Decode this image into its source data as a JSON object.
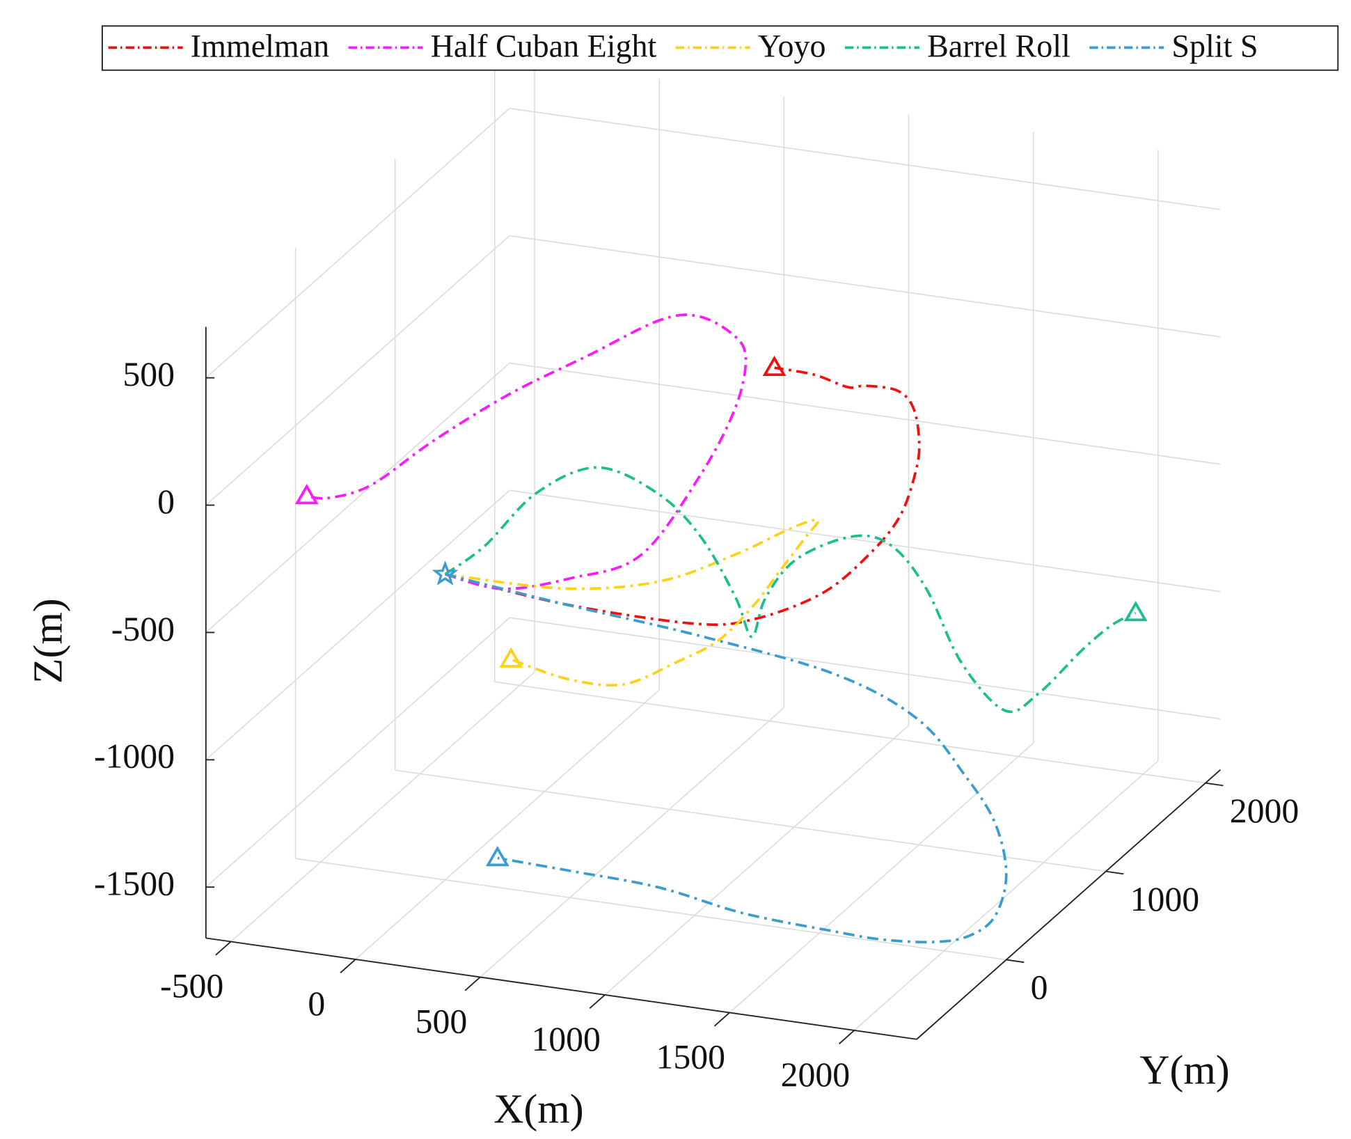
{
  "chart_data": {
    "type": "line3d",
    "xlabel": "X(m)",
    "ylabel": "Y(m)",
    "zlabel": "Z(m)",
    "xlim": [
      -600,
      2250
    ],
    "ylim": [
      -900,
      2150
    ],
    "zlim": [
      -1700,
      700
    ],
    "xticks": [
      -500,
      0,
      500,
      1000,
      1500,
      2000
    ],
    "yticks": [
      0,
      1000,
      2000
    ],
    "zticks": [
      -1500,
      -1000,
      -500,
      0,
      500
    ],
    "grid": true,
    "legend": "top",
    "series": [
      {
        "name": "Immelman",
        "color": "#f01010",
        "x": [
          0,
          470,
          990,
          1235,
          1510,
          1700,
          1825,
          1890,
          1900,
          1875,
          1810,
          1685,
          1615,
          1480,
          1320
        ],
        "y": [
          0,
          0,
          0,
          0,
          0,
          0,
          0,
          0,
          0,
          0,
          0,
          0,
          0,
          0,
          0
        ],
        "z": [
          -500,
          -550,
          -555,
          -505,
          -365,
          -185,
          -15,
          180,
          300,
          420,
          475,
          475,
          460,
          490,
          495
        ]
      },
      {
        "name": "Half Cuban Eight",
        "color": "#ff19ff",
        "x": [
          0,
          230,
          505,
          785,
          1025,
          1165,
          1205,
          1150,
          1010,
          855,
          575,
          260,
          -50,
          -295,
          -465,
          -555
        ],
        "y": [
          0,
          0,
          0,
          0,
          0,
          0,
          0,
          0,
          0,
          0,
          0,
          0,
          0,
          0,
          0,
          0
        ],
        "z": [
          -500,
          -525,
          -445,
          -315,
          35,
          320,
          520,
          605,
          655,
          615,
          440,
          245,
          15,
          -190,
          -265,
          -270
        ]
      },
      {
        "name": "Yoyo",
        "color": "#ffd21a",
        "x": [
          0,
          470,
          815,
          1085,
          1270,
          1335,
          1245,
          1100,
          955,
          775,
          585,
          355,
          110,
          -135
        ],
        "y": [
          0,
          0,
          100,
          200,
          300,
          400,
          500,
          600,
          700,
          800,
          850,
          900,
          950,
          1000
        ],
        "z": [
          -500,
          -490,
          -450,
          -340,
          -245,
          -240,
          -355,
          -545,
          -735,
          -930,
          -1060,
          -1195,
          -1225,
          -1200
        ]
      },
      {
        "name": "Barrel Roll",
        "color": "#1abf8c",
        "x": [
          0,
          220,
          465,
          710,
          915,
          1025,
          1085,
          1090,
          1085,
          1170,
          1375,
          1510,
          1610,
          1690,
          1805,
          1880,
          1995,
          2075,
          2130
        ],
        "y": [
          0,
          -150,
          -250,
          -250,
          -150,
          0,
          200,
          350,
          500,
          600,
          650,
          700,
          800,
          950,
          1100,
          1250,
          1400,
          1500,
          1600
        ],
        "z": [
          -500,
          -305,
          -30,
          105,
          -5,
          -210,
          -510,
          -715,
          -615,
          -485,
          -385,
          -420,
          -610,
          -940,
          -1165,
          -1140,
          -1005,
          -930,
          -910
        ]
      },
      {
        "name": "Split S",
        "color": "#3a9ccf",
        "x": [
          0,
          470,
          1025,
          1545,
          1855,
          2025,
          2125,
          2170,
          2145,
          2065,
          1945,
          1755,
          1565,
          1200,
          855,
          505,
          210
        ],
        "y": [
          0,
          0,
          0,
          50,
          100,
          150,
          200,
          200,
          150,
          100,
          50,
          0,
          0,
          0,
          0,
          0,
          0
        ],
        "z": [
          -500,
          -550,
          -600,
          -695,
          -845,
          -1060,
          -1250,
          -1445,
          -1595,
          -1665,
          -1690,
          -1690,
          -1685,
          -1665,
          -1610,
          -1595,
          -1585
        ]
      }
    ]
  }
}
